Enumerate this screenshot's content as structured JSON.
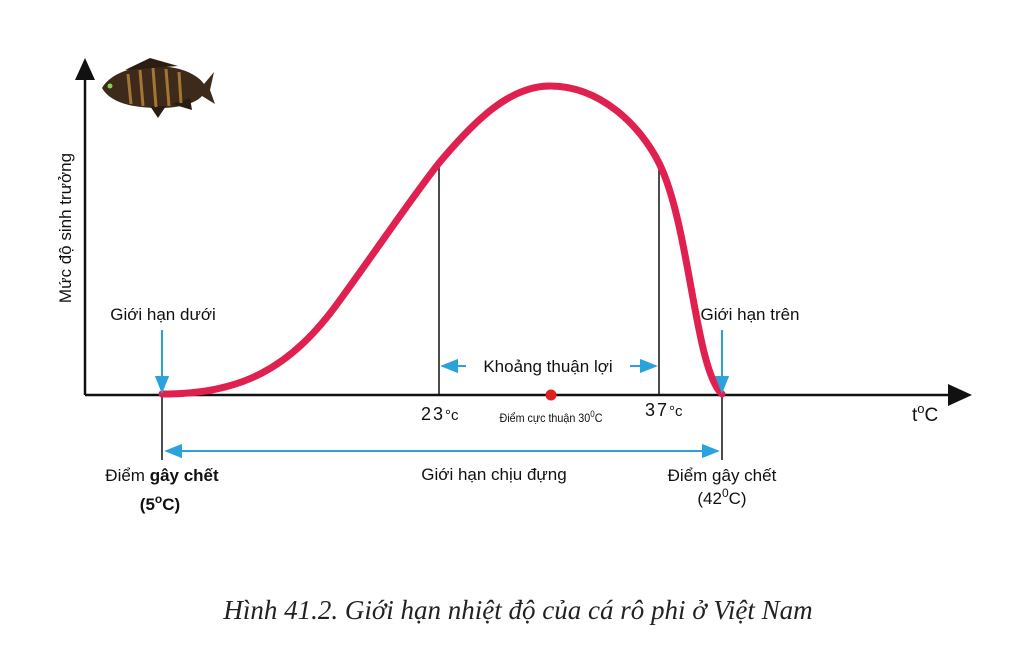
{
  "axes": {
    "y_label": "Mức độ sinh trưởng",
    "x_label": "t",
    "x_label_sup": "o",
    "x_label_unit": "C"
  },
  "labels": {
    "lower_limit": "Giới hạn dưới",
    "upper_limit": "Giới hạn trên",
    "favorable_range": "Khoảng thuận lợi",
    "t23_num": "23",
    "t23_unit": "°c",
    "t37_num": "37",
    "t37_unit": "°c",
    "optimum_text": "Điểm cực thuận 30",
    "optimum_sup": "0",
    "optimum_unit": "C",
    "tolerance_range": "Giới hạn chịu đựng",
    "death_point_left_a": "Điểm ",
    "death_point_left_b": "gây chết",
    "death_point_left_val": "(5",
    "death_point_left_sup": "o",
    "death_point_left_unit": "C)",
    "death_point_right": "Điểm gây chết",
    "death_point_right_val": "(42",
    "death_point_right_sup": "0",
    "death_point_right_unit": "C)"
  },
  "caption": "Hình 41.2. Giới hạn nhiệt độ của cá rô phi ở Việt Nam",
  "colors": {
    "curve": "#e0204f",
    "arrow_blue": "#2aa3dc",
    "optimum_dot": "#e02020",
    "axis": "#111111",
    "fish_body": "#3d2a1a",
    "fish_stripes": "#c08a3a"
  },
  "icons": {
    "fish": "fish-icon"
  }
}
